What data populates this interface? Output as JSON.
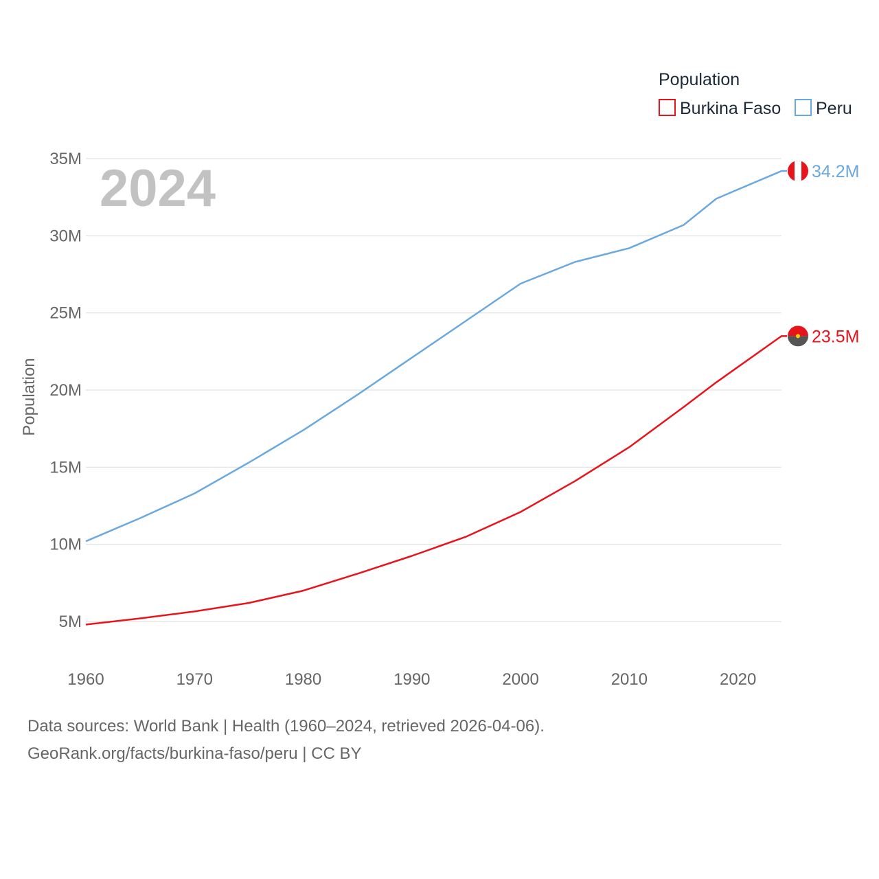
{
  "chart_data": {
    "type": "line",
    "title": "",
    "year_label": "2024",
    "xlabel": "",
    "ylabel": "Population",
    "xlim": [
      1960,
      2024
    ],
    "ylim": [
      5000000,
      35000000
    ],
    "x_ticks": [
      1960,
      1970,
      1980,
      1990,
      2000,
      2010,
      2020
    ],
    "x_tick_labels": [
      "1960",
      "1970",
      "1980",
      "1990",
      "2000",
      "2010",
      "2020"
    ],
    "y_ticks": [
      5000000,
      10000000,
      15000000,
      20000000,
      25000000,
      30000000,
      35000000
    ],
    "y_tick_labels": [
      "5M",
      "10M",
      "15M",
      "20M",
      "25M",
      "30M",
      "35M"
    ],
    "legend": {
      "title": "Population",
      "position": "top-right"
    },
    "x": [
      1960,
      1965,
      1970,
      1975,
      1980,
      1985,
      1990,
      1995,
      2000,
      2005,
      2010,
      2015,
      2018,
      2020,
      2024
    ],
    "series": [
      {
        "name": "Burkina Faso",
        "color": "#e8141c",
        "values": [
          4800000,
          5200000,
          5650000,
          6200000,
          7000000,
          8100000,
          9250000,
          10500000,
          12100000,
          14100000,
          16300000,
          18900000,
          20500000,
          21500000,
          23500000
        ],
        "end_label": "23.5M"
      },
      {
        "name": "Peru",
        "color": "#6aa8e0",
        "values": [
          10200000,
          11700000,
          13300000,
          15300000,
          17400000,
          19700000,
          22100000,
          24500000,
          26900000,
          28300000,
          29200000,
          30700000,
          32400000,
          33000000,
          34200000
        ],
        "end_label": "34.2M"
      }
    ]
  },
  "footer": {
    "line1": "Data sources: World Bank | Health (1960–2024, retrieved 2026-04-06).",
    "line2": "GeoRank.org/facts/burkina-faso/peru | CC BY"
  }
}
